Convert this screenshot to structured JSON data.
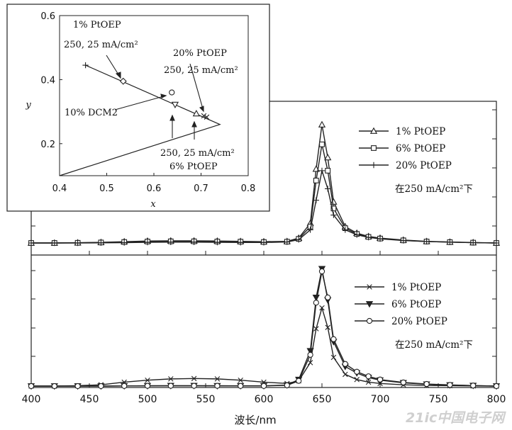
{
  "chart_data": [
    {
      "type": "line",
      "panel": "upper",
      "xlabel": "波长/nm",
      "x": [
        400,
        420,
        440,
        460,
        480,
        500,
        520,
        540,
        560,
        580,
        600,
        620,
        630,
        640,
        645,
        650,
        655,
        660,
        670,
        680,
        690,
        700,
        720,
        740,
        760,
        780,
        800
      ],
      "xlim": [
        400,
        800
      ],
      "annotation": "在250 mA/cm²下",
      "series": [
        {
          "name": "1% PtOEP",
          "marker": "triangle",
          "values": [
            0,
            0,
            0.002,
            0.004,
            0.008,
            0.012,
            0.013,
            0.013,
            0.012,
            0.01,
            0.008,
            0.01,
            0.03,
            0.12,
            0.45,
            0.72,
            0.52,
            0.25,
            0.1,
            0.06,
            0.04,
            0.03,
            0.018,
            0.01,
            0.006,
            0.003,
            0
          ]
        },
        {
          "name": "6% PtOEP",
          "marker": "square",
          "values": [
            0,
            0,
            0.001,
            0.003,
            0.006,
            0.009,
            0.01,
            0.01,
            0.009,
            0.008,
            0.006,
            0.008,
            0.025,
            0.1,
            0.38,
            0.6,
            0.44,
            0.21,
            0.09,
            0.055,
            0.037,
            0.027,
            0.016,
            0.009,
            0.005,
            0.002,
            0
          ]
        },
        {
          "name": "20% PtOEP",
          "marker": "plus",
          "values": [
            0,
            0,
            0,
            0.001,
            0.002,
            0.004,
            0.005,
            0.005,
            0.004,
            0.003,
            0.003,
            0.006,
            0.02,
            0.08,
            0.26,
            0.44,
            0.33,
            0.17,
            0.08,
            0.05,
            0.034,
            0.025,
            0.015,
            0.009,
            0.005,
            0.002,
            0
          ]
        }
      ]
    },
    {
      "type": "line",
      "panel": "lower",
      "xlabel": "波长/nm",
      "x": [
        400,
        420,
        440,
        460,
        480,
        500,
        520,
        540,
        560,
        580,
        600,
        620,
        630,
        640,
        645,
        650,
        655,
        660,
        670,
        680,
        690,
        700,
        720,
        740,
        760,
        780,
        800
      ],
      "xlim": [
        400,
        800
      ],
      "xticks": [
        400,
        450,
        500,
        550,
        600,
        650,
        700,
        750,
        800
      ],
      "annotation": "在250 mA/cm²下",
      "series": [
        {
          "name": "1% PtOEP",
          "marker": "x",
          "values": [
            0,
            0,
            0.003,
            0.01,
            0.03,
            0.045,
            0.055,
            0.058,
            0.055,
            0.045,
            0.03,
            0.02,
            0.04,
            0.18,
            0.44,
            0.6,
            0.45,
            0.22,
            0.09,
            0.05,
            0.03,
            0.02,
            0.01,
            0.005,
            0.003,
            0.001,
            0
          ]
        },
        {
          "name": "6% PtOEP",
          "marker": "filled-triangle-down",
          "values": [
            0,
            0,
            0,
            0,
            0.001,
            0.002,
            0.003,
            0.003,
            0.002,
            0.002,
            0.002,
            0.008,
            0.05,
            0.27,
            0.68,
            0.9,
            0.66,
            0.34,
            0.15,
            0.1,
            0.065,
            0.045,
            0.025,
            0.014,
            0.008,
            0.004,
            0
          ]
        },
        {
          "name": "20% PtOEP",
          "marker": "circle",
          "values": [
            0,
            0,
            0,
            0,
            0.001,
            0.002,
            0.002,
            0.002,
            0.002,
            0.001,
            0.001,
            0.006,
            0.04,
            0.24,
            0.64,
            0.88,
            0.68,
            0.36,
            0.17,
            0.11,
            0.075,
            0.05,
            0.028,
            0.016,
            0.009,
            0.004,
            0
          ]
        }
      ]
    },
    {
      "type": "scatter",
      "panel": "inset",
      "xlabel": "x",
      "ylabel": "y",
      "xlim": [
        0.4,
        0.8
      ],
      "ylim": [
        0.1,
        0.6
      ],
      "xticks": [
        0.4,
        0.5,
        0.6,
        0.7,
        0.8
      ],
      "yticks": [
        0.2,
        0.4,
        0.6
      ],
      "boundary": [
        [
          0.4,
          0.1
        ],
        [
          0.74,
          0.26
        ],
        [
          0.455,
          0.445
        ]
      ],
      "points": [
        {
          "label": "1% PtOEP 250, 25 mA/cm²",
          "marker": "plus",
          "x": 0.455,
          "y": 0.445
        },
        {
          "label": "1% PtOEP 250, 25 mA/cm²",
          "marker": "diamond",
          "x": 0.535,
          "y": 0.395
        },
        {
          "label": "10% DCM2",
          "marker": "circle",
          "x": 0.638,
          "y": 0.36
        },
        {
          "label": "6% PtOEP 250, 25 mA/cm²",
          "marker": "triangle-down",
          "x": 0.645,
          "y": 0.322
        },
        {
          "label": "6% PtOEP 250, 25 mA/cm²",
          "marker": "triangle",
          "x": 0.69,
          "y": 0.294
        },
        {
          "label": "20% PtOEP 250, 25 mA/cm²",
          "marker": "x",
          "x": 0.706,
          "y": 0.287
        },
        {
          "label": "20% PtOEP 250, 25 mA/cm²",
          "marker": "x",
          "x": 0.712,
          "y": 0.283
        }
      ],
      "annotations": [
        "1% PtOEP",
        "250, 25 mA/cm²",
        "20% PtOEP",
        "250, 25 mA/cm²",
        "10% DCM2",
        "250, 25 mA/cm²",
        "6% PtOEP"
      ]
    }
  ],
  "watermark": "21ic中国电子网"
}
